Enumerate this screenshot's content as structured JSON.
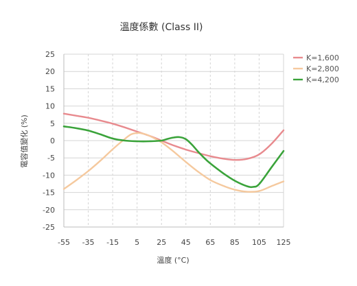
{
  "chart_data": {
    "type": "line",
    "title": "溫度係數 (Class II)",
    "xlabel": "溫度 (°C)",
    "ylabel": "電容值變化 (%)",
    "xlim": [
      -55,
      125
    ],
    "ylim": [
      -25,
      25
    ],
    "xticks": [
      -55,
      -35,
      -15,
      5,
      25,
      45,
      65,
      85,
      105,
      125
    ],
    "xtick_labels": [
      "-55",
      "-35",
      "-15",
      "5",
      "25",
      "45",
      "65",
      "85",
      "105",
      "125"
    ],
    "yticks": [
      25,
      20,
      15,
      10,
      5,
      0,
      -5,
      -10,
      -15,
      -20,
      -25
    ],
    "ytick_labels": [
      "25",
      "20",
      "15",
      "10",
      "5",
      "0",
      "-5",
      "-10",
      "-15",
      "-20",
      "-25"
    ],
    "grid": true,
    "legend_position": "right",
    "series": [
      {
        "name": "K=1,600",
        "color": "#e88a8e",
        "points": [
          [
            -55,
            7.8
          ],
          [
            -45,
            7.2
          ],
          [
            -35,
            6.6
          ],
          [
            -25,
            5.8
          ],
          [
            -15,
            4.9
          ],
          [
            -5,
            3.8
          ],
          [
            5,
            2.6
          ],
          [
            15,
            1.4
          ],
          [
            25,
            0
          ],
          [
            35,
            -1.4
          ],
          [
            45,
            -2.6
          ],
          [
            55,
            -3.6
          ],
          [
            65,
            -4.5
          ],
          [
            75,
            -5.2
          ],
          [
            85,
            -5.6
          ],
          [
            95,
            -5.3
          ],
          [
            105,
            -4.0
          ],
          [
            115,
            -1.0
          ],
          [
            125,
            3.0
          ]
        ]
      },
      {
        "name": "K=2,800",
        "color": "#f5c99e",
        "points": [
          [
            -55,
            -14
          ],
          [
            -45,
            -11.5
          ],
          [
            -35,
            -8.8
          ],
          [
            -25,
            -5.8
          ],
          [
            -15,
            -2.5
          ],
          [
            -5,
            0.5
          ],
          [
            0,
            1.8
          ],
          [
            5,
            2.2
          ],
          [
            10,
            2.0
          ],
          [
            15,
            1.4
          ],
          [
            25,
            -0.5
          ],
          [
            35,
            -3.2
          ],
          [
            45,
            -6.2
          ],
          [
            55,
            -9.0
          ],
          [
            65,
            -11.4
          ],
          [
            75,
            -13.0
          ],
          [
            85,
            -14.2
          ],
          [
            95,
            -14.8
          ],
          [
            105,
            -14.6
          ],
          [
            115,
            -13.2
          ],
          [
            125,
            -11.8
          ]
        ]
      },
      {
        "name": "K=4,200",
        "color": "#3aa33a",
        "points": [
          [
            -55,
            4.1
          ],
          [
            -45,
            3.6
          ],
          [
            -35,
            2.9
          ],
          [
            -25,
            1.8
          ],
          [
            -15,
            0.6
          ],
          [
            -5,
            0.0
          ],
          [
            5,
            -0.2
          ],
          [
            15,
            -0.2
          ],
          [
            25,
            0.0
          ],
          [
            30,
            0.5
          ],
          [
            35,
            0.9
          ],
          [
            40,
            1.0
          ],
          [
            45,
            0.4
          ],
          [
            50,
            -1.2
          ],
          [
            55,
            -3.2
          ],
          [
            60,
            -5.0
          ],
          [
            65,
            -6.6
          ],
          [
            75,
            -9.3
          ],
          [
            85,
            -11.6
          ],
          [
            95,
            -13.2
          ],
          [
            100,
            -13.4
          ],
          [
            105,
            -12.6
          ],
          [
            115,
            -7.8
          ],
          [
            125,
            -3.0
          ]
        ]
      }
    ]
  }
}
